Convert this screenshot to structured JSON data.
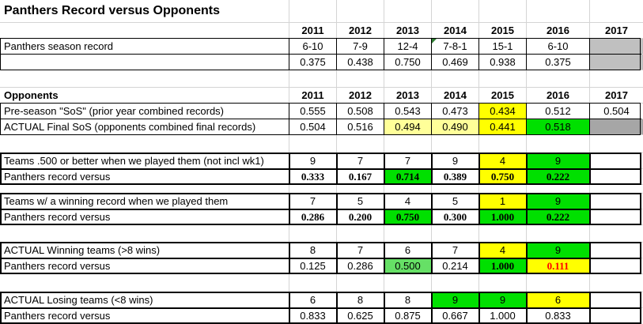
{
  "title": "Panthers Record versus Opponents",
  "years": [
    "2011",
    "2012",
    "2013",
    "2014",
    "2015",
    "2016",
    "2017"
  ],
  "season": {
    "label": "Panthers season record",
    "records": [
      "6-10",
      "7-9",
      "12-4",
      "7-8-1",
      "15-1",
      "6-10",
      ""
    ],
    "pcts": [
      "0.375",
      "0.438",
      "0.750",
      "0.469",
      "0.938",
      "0.375",
      ""
    ]
  },
  "opponents": {
    "header": "Opponents",
    "preseason_label": "Pre-season \"SoS\" (prior year combined records)",
    "preseason": [
      "0.555",
      "0.508",
      "0.543",
      "0.473",
      "0.434",
      "0.512",
      "0.504"
    ],
    "actual_label": "ACTUAL Final SoS (opponents combined final records)",
    "actual": [
      "0.504",
      "0.516",
      "0.494",
      "0.490",
      "0.441",
      "0.518",
      ""
    ]
  },
  "blocks": [
    {
      "label1": "Teams .500 or better when we played them (not incl wk1)",
      "vals1": [
        "9",
        "7",
        "7",
        "9",
        "4",
        "9",
        ""
      ],
      "label2": "Panthers record versus",
      "vals2": [
        "0.333",
        "0.167",
        "0.714",
        "0.389",
        "0.750",
        "0.222",
        ""
      ]
    },
    {
      "label1": "Teams w/ a winning record when we played them",
      "vals1": [
        "7",
        "5",
        "4",
        "5",
        "1",
        "9",
        ""
      ],
      "label2": "Panthers record versus",
      "vals2": [
        "0.286",
        "0.200",
        "0.750",
        "0.300",
        "1.000",
        "0.222",
        ""
      ]
    },
    {
      "label1": "ACTUAL Winning teams (>8 wins)",
      "vals1": [
        "8",
        "7",
        "6",
        "7",
        "4",
        "9",
        ""
      ],
      "label2": "Panthers record versus",
      "vals2": [
        "0.125",
        "0.286",
        "0.500",
        "0.214",
        "1.000",
        "0.111",
        ""
      ]
    },
    {
      "label1": "ACTUAL Losing teams (<8 wins)",
      "vals1": [
        "6",
        "8",
        "8",
        "9",
        "9",
        "6",
        ""
      ],
      "label2": "Panthers record versus",
      "vals2": [
        "0.833",
        "0.625",
        "0.875",
        "0.667",
        "1.000",
        "0.833",
        ""
      ]
    }
  ],
  "colors": {
    "yellow": "#ffff00",
    "light_yellow": "#ffff99",
    "green": "#00e000",
    "light_green": "#66e066",
    "gray": "#c0c0c0",
    "dark_gray": "#a6a6a6",
    "red_text": "#ff0000"
  }
}
